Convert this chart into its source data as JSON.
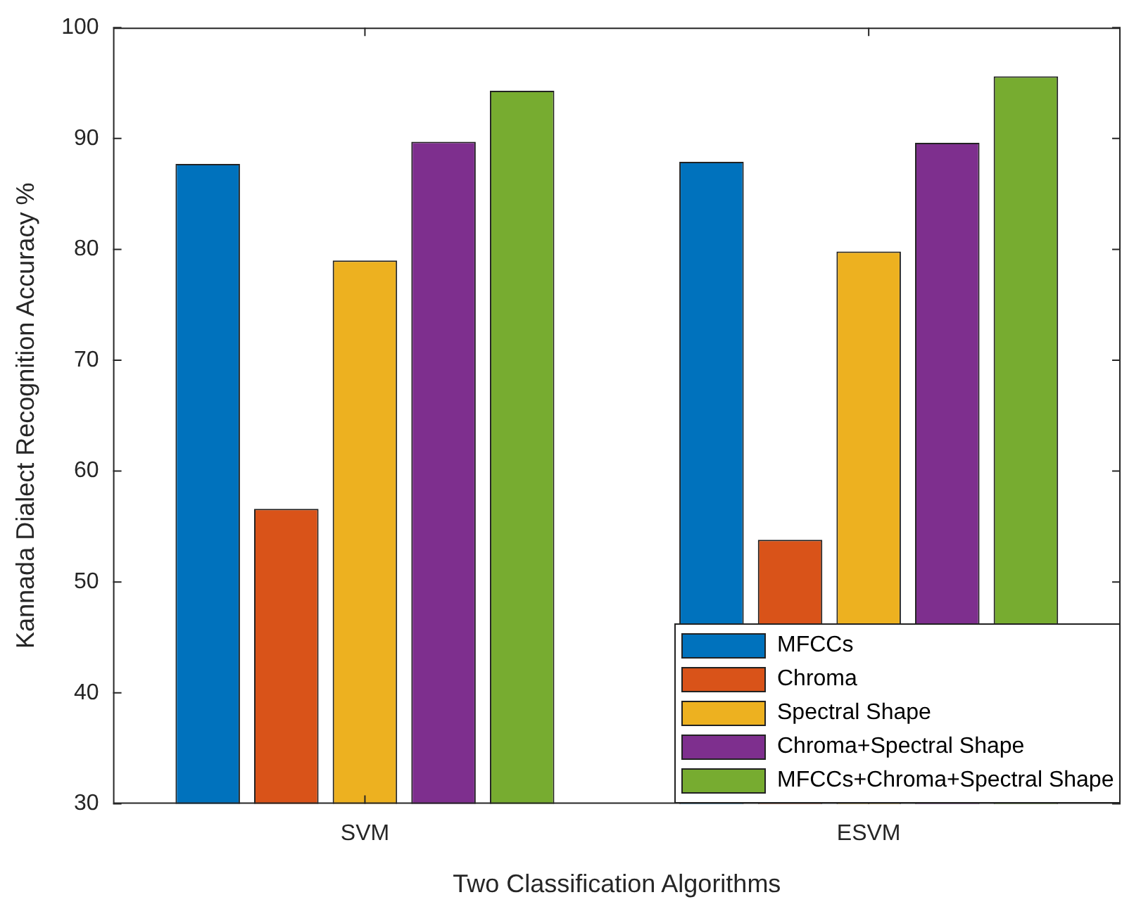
{
  "chart_data": {
    "type": "bar",
    "xlabel": "Two Classification Algorithms",
    "ylabel": "Kannada Dialect Recognition Accuracy %",
    "categories": [
      "SVM",
      "ESVM"
    ],
    "series": [
      {
        "name": "MFCCs",
        "color": "#0072bd",
        "values": [
          87.7,
          87.9
        ]
      },
      {
        "name": "Chroma",
        "color": "#d95319",
        "values": [
          56.6,
          53.8
        ]
      },
      {
        "name": "Spectral Shape",
        "color": "#edb120",
        "values": [
          79.0,
          79.8
        ]
      },
      {
        "name": "Chroma+Spectral Shape",
        "color": "#7e2f8e",
        "values": [
          89.7,
          89.6
        ]
      },
      {
        "name": "MFCCs+Chroma+Spectral Shape",
        "color": "#77ac30",
        "values": [
          94.3,
          95.6
        ]
      }
    ],
    "ylim": [
      30,
      100
    ],
    "yticks": [
      30,
      40,
      50,
      60,
      70,
      80,
      90,
      100
    ],
    "grid": false,
    "legend": "bottom right"
  }
}
